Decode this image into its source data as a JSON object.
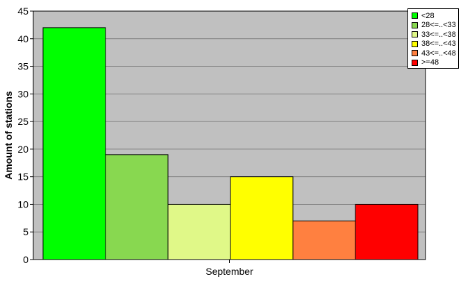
{
  "chart_data": {
    "type": "bar",
    "categories": [
      "September"
    ],
    "series": [
      {
        "name": "<28",
        "values": [
          42
        ],
        "color": "#00ff00"
      },
      {
        "name": "28<=..<33",
        "values": [
          19
        ],
        "color": "#88d850"
      },
      {
        "name": "33<=..<38",
        "values": [
          10
        ],
        "color": "#e0f888"
      },
      {
        "name": "38<=..<43",
        "values": [
          15
        ],
        "color": "#ffff00"
      },
      {
        "name": "43<=..<48",
        "values": [
          7
        ],
        "color": "#ff8040"
      },
      {
        "name": ">=48",
        "values": [
          10
        ],
        "color": "#ff0000"
      }
    ],
    "xlabel": "",
    "ylabel": "Amount of stations",
    "ylim": [
      0,
      45
    ],
    "yticks": [
      0,
      5,
      10,
      15,
      20,
      25,
      30,
      35,
      40,
      45
    ],
    "grid": true,
    "plot_background": "#c0c0c0",
    "legend_placement": "top-right"
  }
}
